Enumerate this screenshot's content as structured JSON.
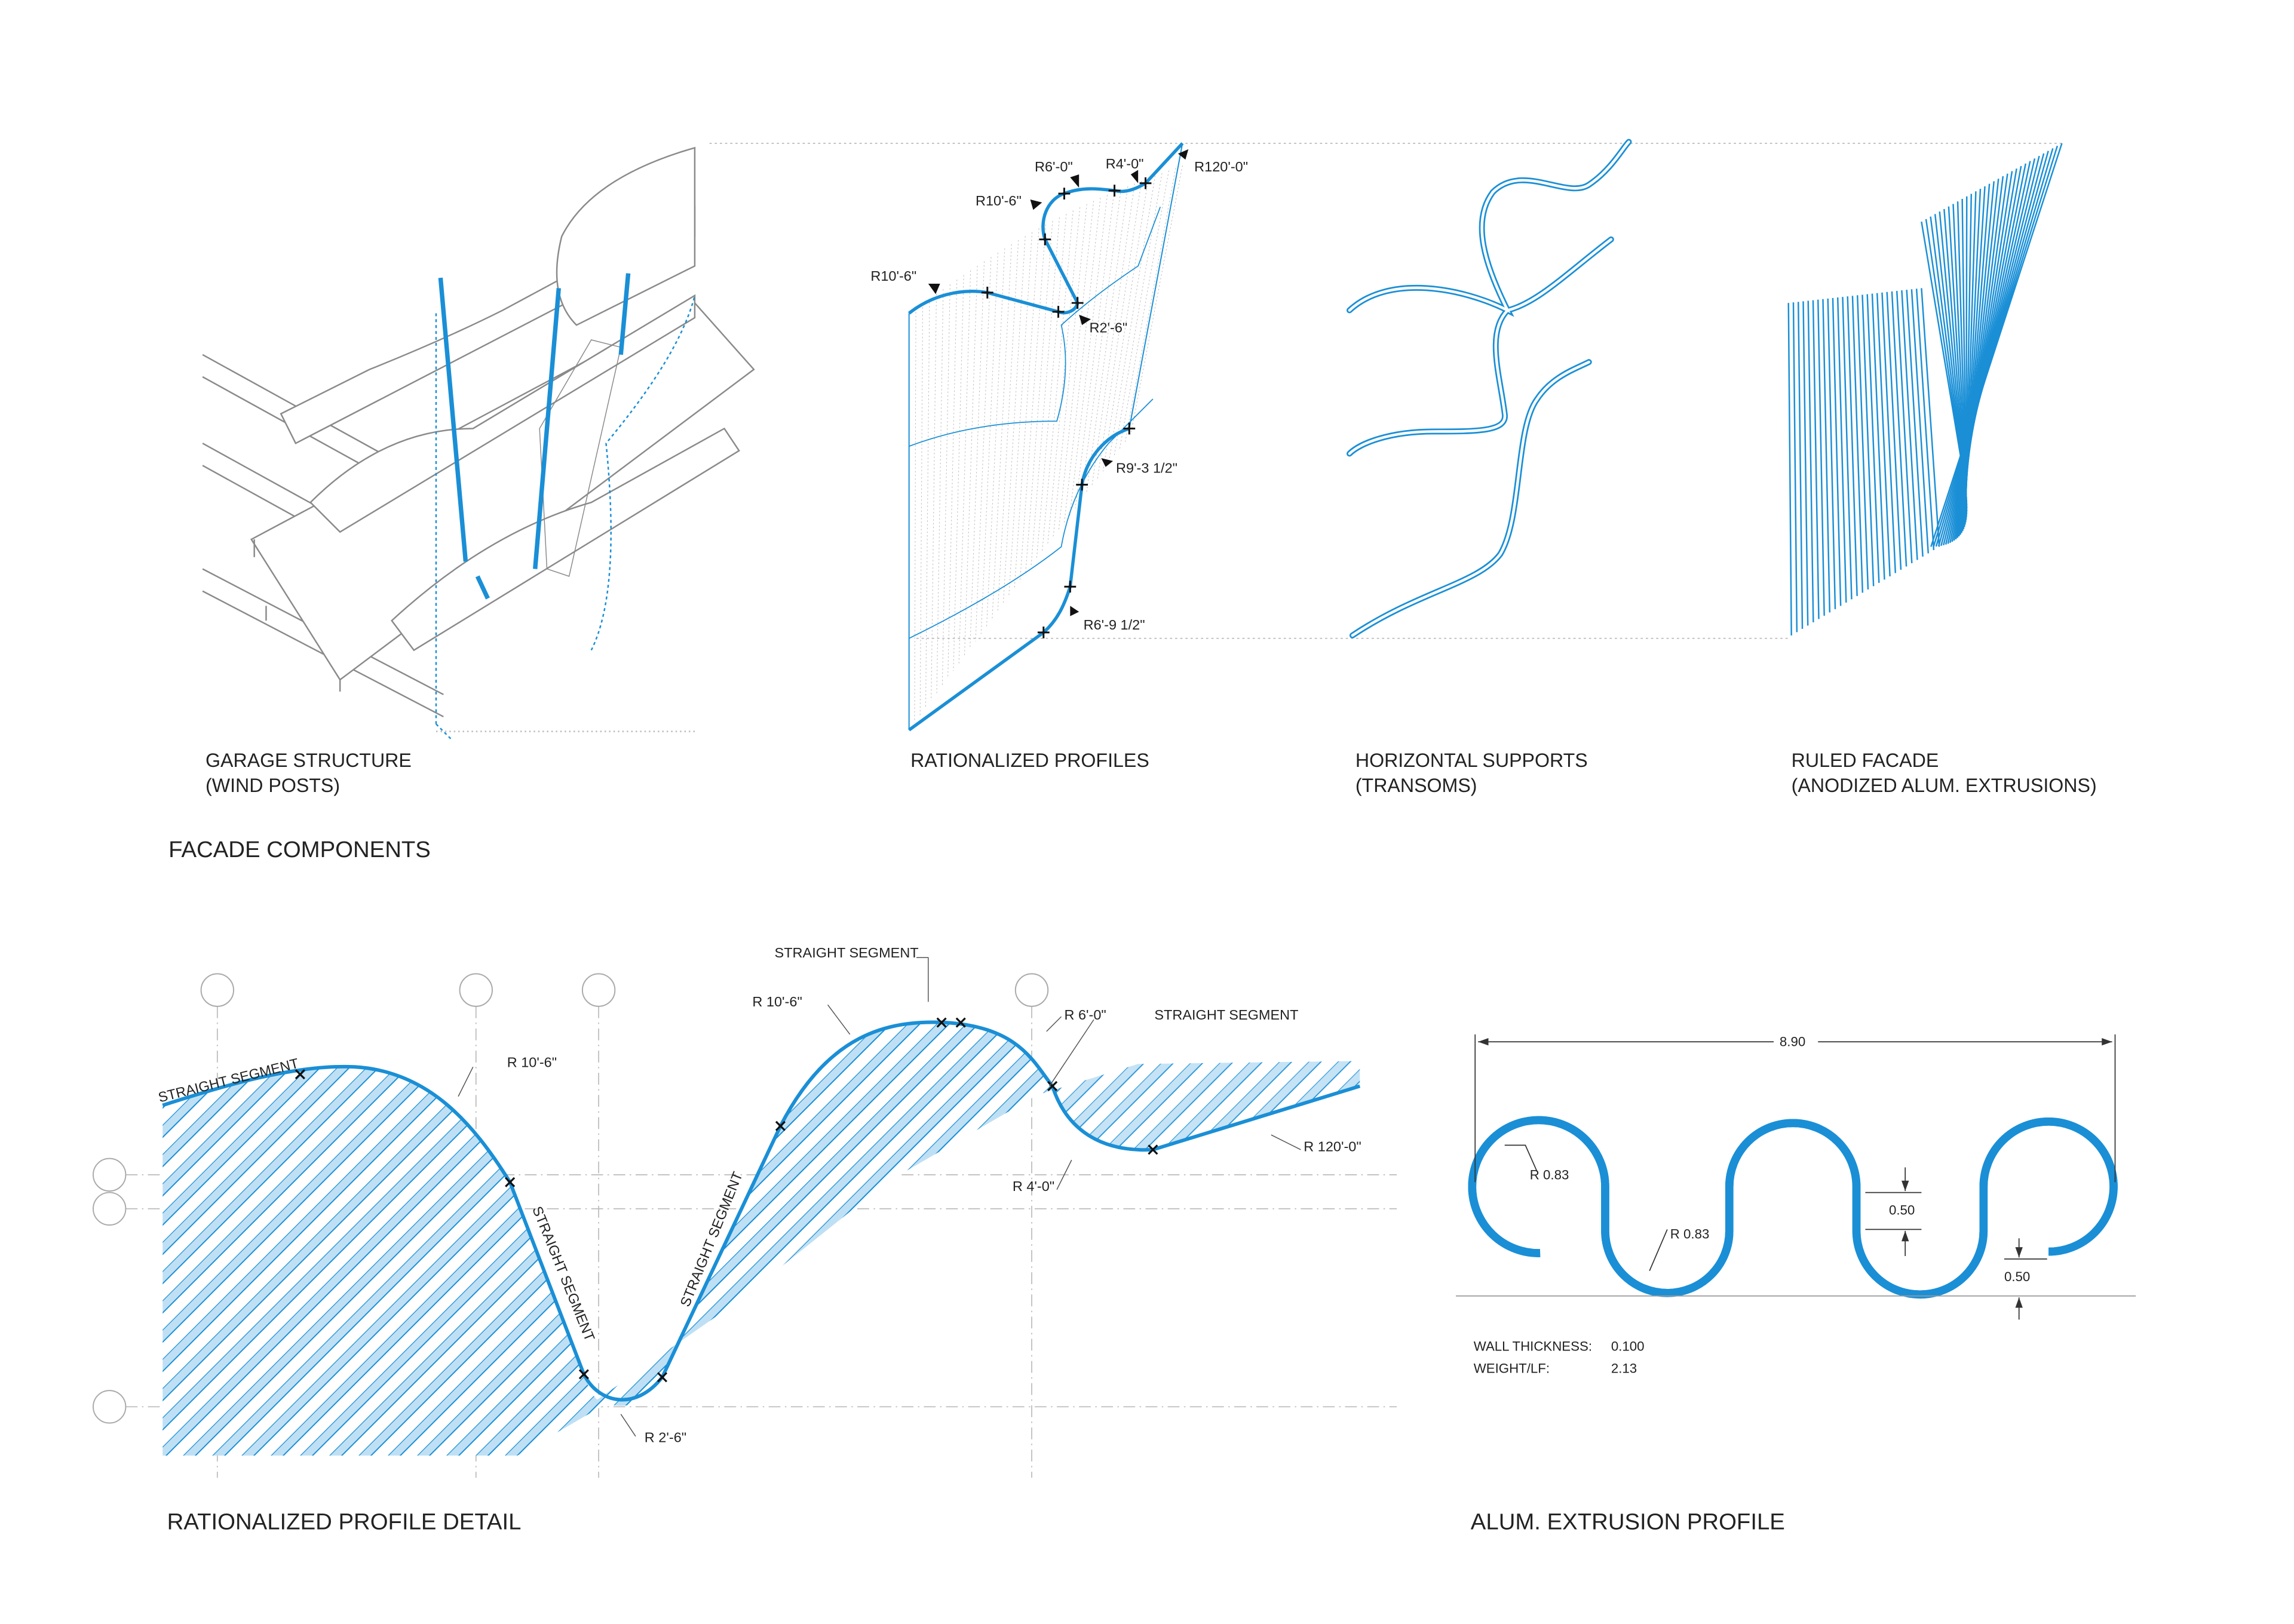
{
  "colors": {
    "accent": "#1a8fd6",
    "light_blue": "#9fd0ee",
    "gray": "#8a8a8a",
    "text": "#222222"
  },
  "top": {
    "section_title": "FACADE COMPONENTS",
    "panels": [
      {
        "line1": "GARAGE STRUCTURE",
        "line2": "(WIND POSTS)"
      },
      {
        "line1": "RATIONALIZED PROFILES",
        "line2": ""
      },
      {
        "line1": "HORIZONTAL SUPPORTS",
        "line2": "(TRANSOMS)"
      },
      {
        "line1": "RULED FACADE",
        "line2": "(ANODIZED ALUM. EXTRUSIONS)"
      }
    ],
    "profile_radii": [
      "R10'-6\"",
      "R10'-6\"",
      "R6'-0\"",
      "R4'-0\"",
      "R120'-0\"",
      "R2'-6\"",
      "R9'-3 1/2\"",
      "R6'-9 1/2\""
    ]
  },
  "detail": {
    "title": "RATIONALIZED PROFILE DETAIL",
    "labels": {
      "straight_1": "STRAIGHT SEGMENT",
      "r_10_6_left": "R 10'-6\"",
      "straight_2": "STRAIGHT SEGMENT",
      "straight_3": "STRAIGHT SEGMENT",
      "r_2_6": "R 2'-6\"",
      "straight_top": "STRAIGHT SEGMENT",
      "r_10_6_right": "R 10'-6\"",
      "r_6_0": "R 6'-0\"",
      "straight_right": "STRAIGHT SEGMENT",
      "r_120_0": "R 120'-0\"",
      "r_4_0": "R 4'-0\""
    }
  },
  "extrusion": {
    "title": "ALUM. EXTRUSION PROFILE",
    "overall_width": "8.90",
    "radius_1": "R 0.83",
    "radius_2": "R 0.83",
    "straight_dim": "0.50",
    "lip_dim": "0.50",
    "wall_thickness_label": "WALL THICKNESS:",
    "wall_thickness_value": "0.100",
    "weight_label": "WEIGHT/LF:",
    "weight_value": "2.13"
  }
}
